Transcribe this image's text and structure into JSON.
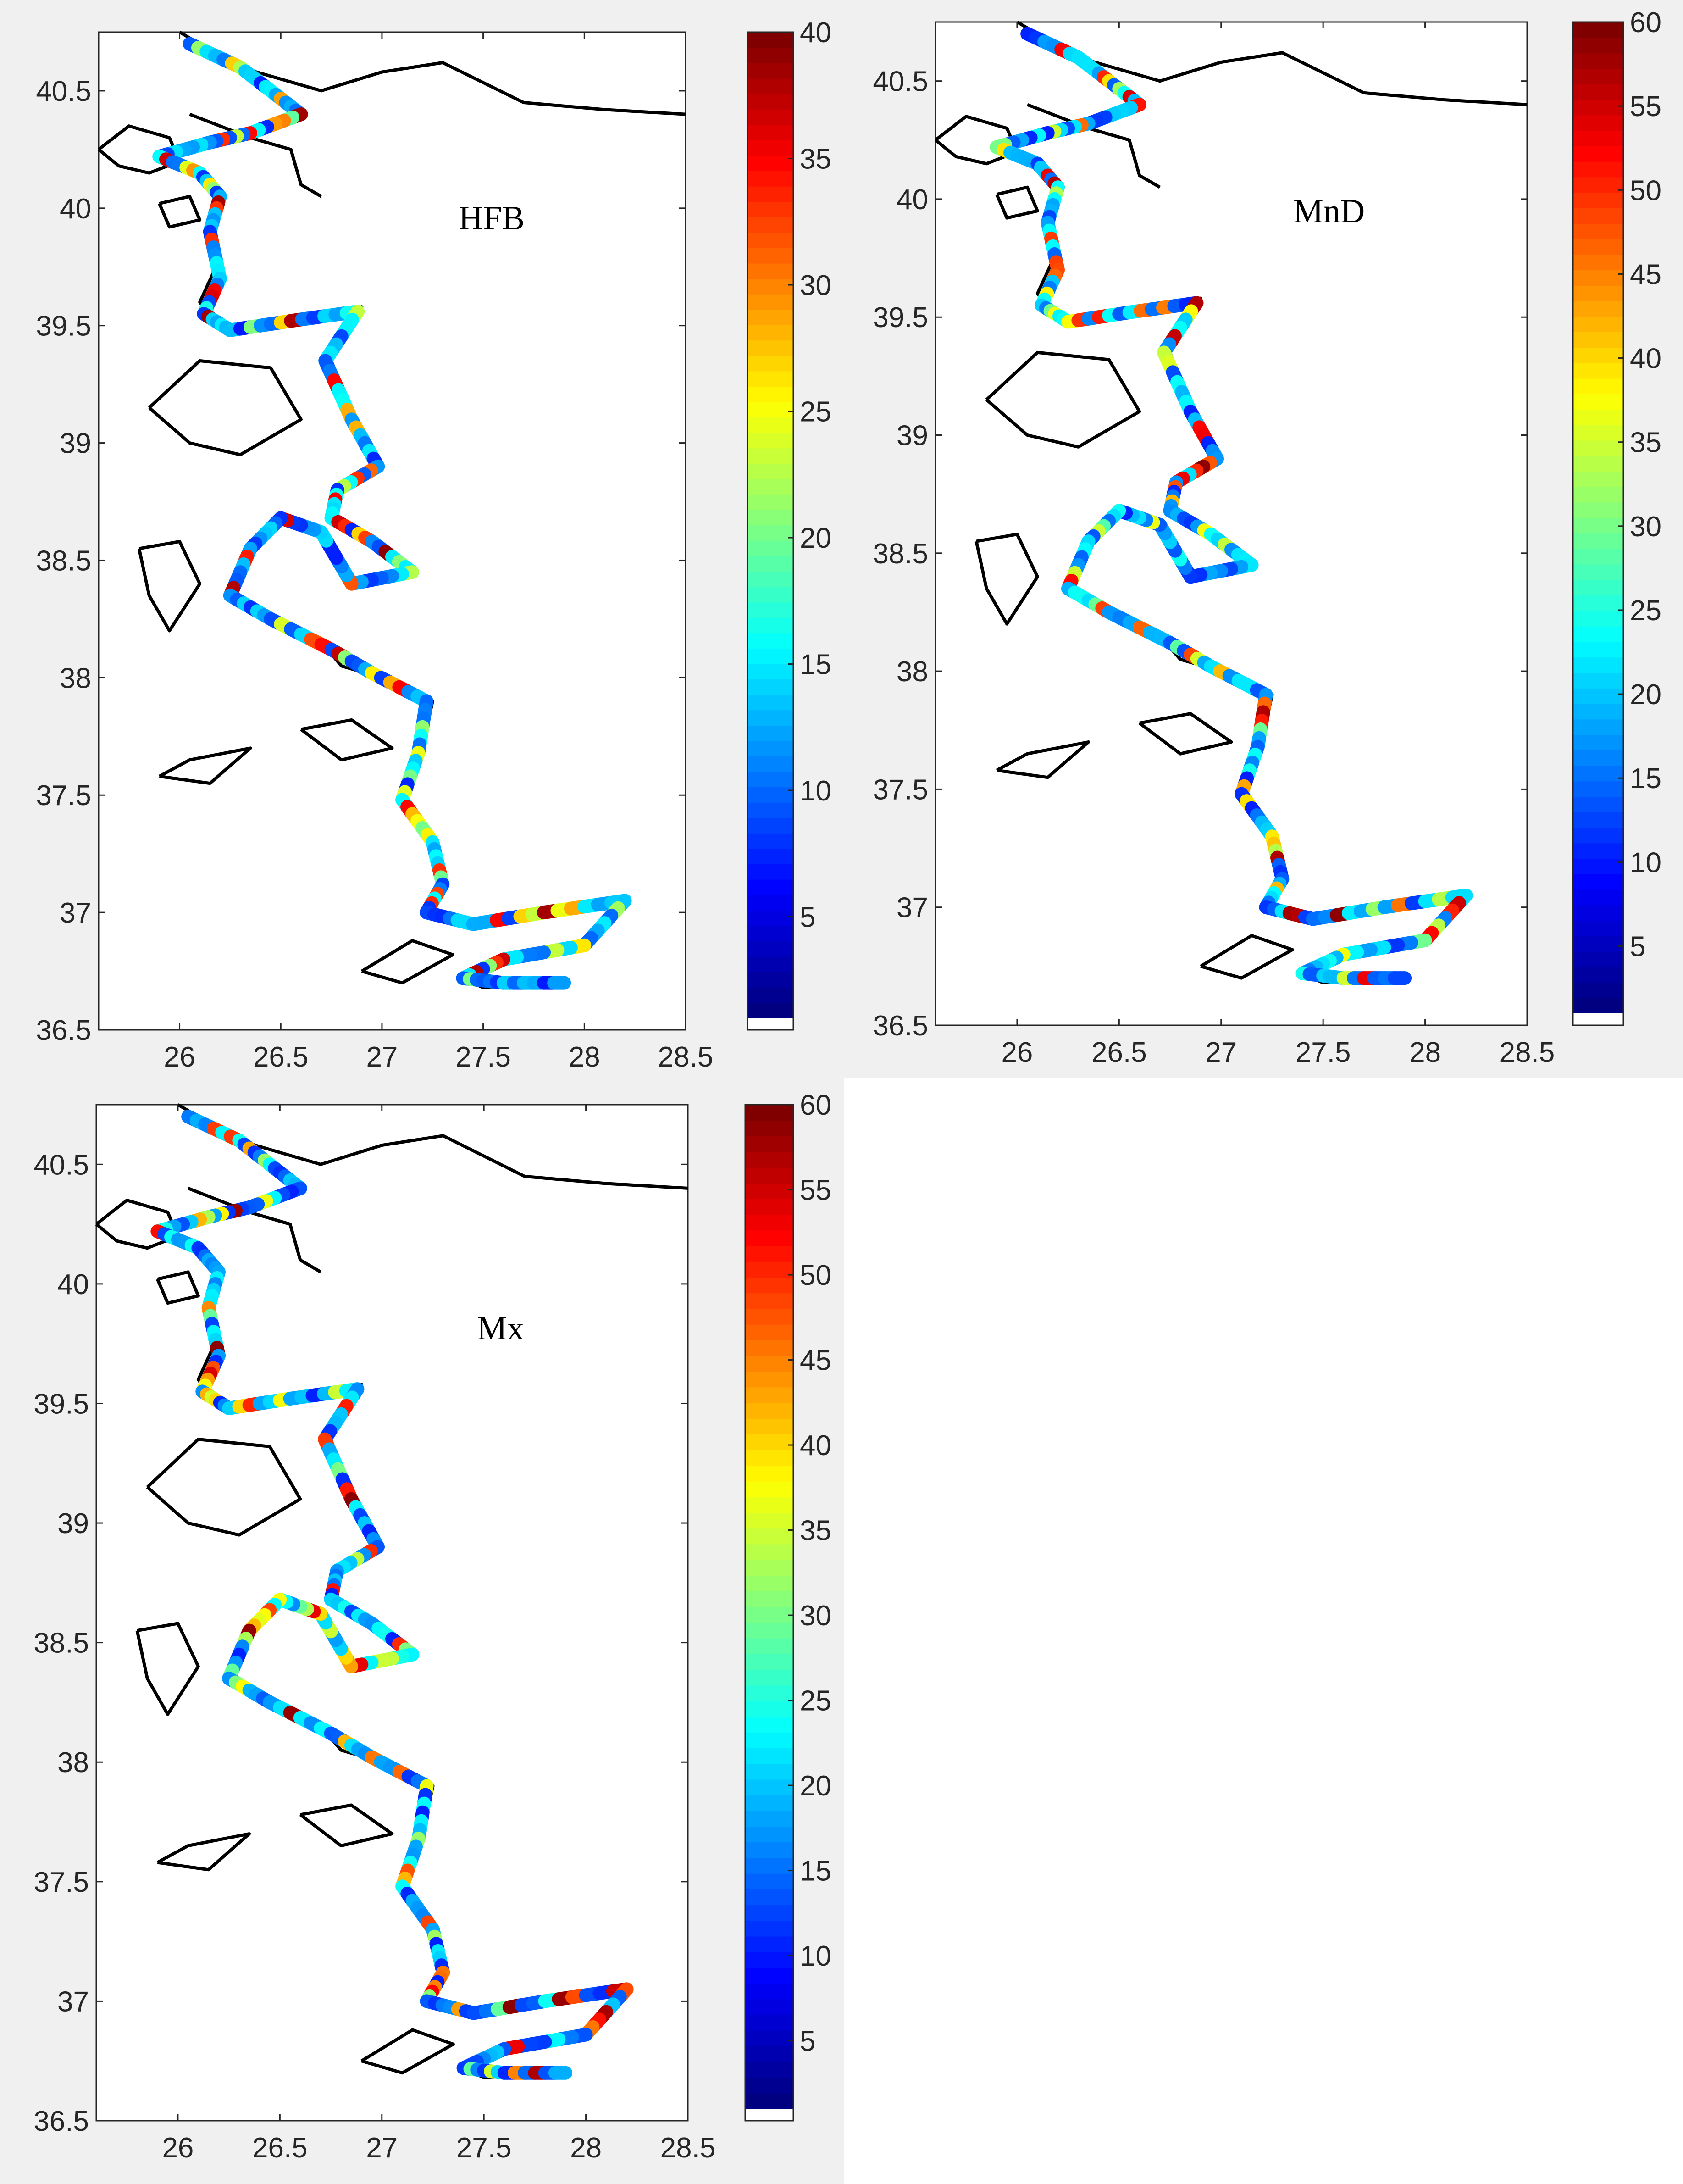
{
  "panels": [
    {
      "label": "HFB",
      "colorbar": {
        "min": 1,
        "max": 40,
        "ticks": [
          5,
          10,
          15,
          20,
          25,
          30,
          35,
          40
        ]
      }
    },
    {
      "label": "MnD",
      "colorbar": {
        "min": 1,
        "max": 60,
        "ticks": [
          5,
          10,
          15,
          20,
          25,
          30,
          35,
          40,
          45,
          50,
          55,
          60
        ]
      }
    },
    {
      "label": "Mx",
      "colorbar": {
        "min": 1,
        "max": 60,
        "ticks": [
          5,
          10,
          15,
          20,
          25,
          30,
          35,
          40,
          45,
          50,
          55,
          60
        ]
      }
    }
  ],
  "axes": {
    "x_range": [
      25.6,
      28.5
    ],
    "y_range": [
      36.5,
      40.75
    ],
    "x_ticks": [
      "26",
      "26.5",
      "27",
      "27.5",
      "28",
      "28.5"
    ],
    "y_ticks": [
      "36.5",
      "37",
      "37.5",
      "38",
      "38.5",
      "39",
      "39.5",
      "40",
      "40.5"
    ]
  },
  "colormap": "jet",
  "coastline_color": "#000000",
  "below_min_color": "#ffffff"
}
